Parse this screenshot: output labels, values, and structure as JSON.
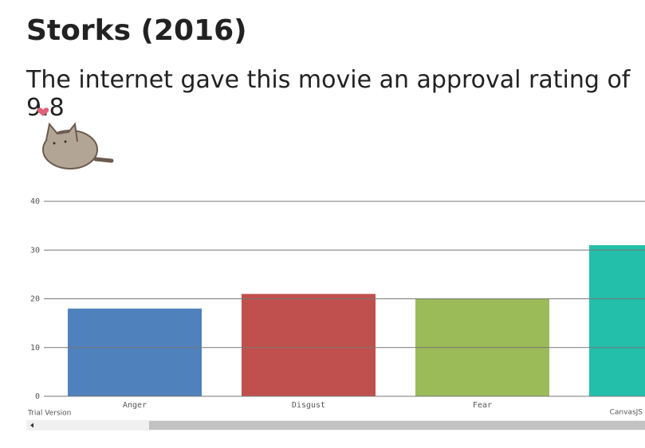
{
  "header": {
    "title": "Storks (2016)",
    "subtitle": "The internet gave this movie an approval rating of 9.8"
  },
  "chart_data": {
    "type": "bar",
    "categories": [
      "Anger",
      "Disgust",
      "Fear",
      null
    ],
    "series": [
      {
        "colors": [
          "#4f81bc",
          "#c0504e",
          "#9bbb58",
          "#23bfaa"
        ],
        "values": [
          18,
          21,
          20,
          31
        ]
      }
    ],
    "ylim": [
      0,
      40
    ],
    "yticks": [
      0,
      10,
      20,
      30,
      40
    ],
    "grid": true
  },
  "footer": {
    "trial": "Trial Version",
    "credit": "CanvasJS"
  }
}
